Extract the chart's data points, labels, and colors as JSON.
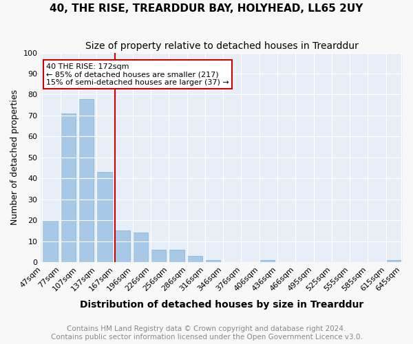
{
  "title": "40, THE RISE, TREARDDUR BAY, HOLYHEAD, LL65 2UY",
  "subtitle": "Size of property relative to detached houses in Trearddur",
  "xlabel": "Distribution of detached houses by size in Trearddur",
  "ylabel": "Number of detached properties",
  "bar_color": "#a8c8e8",
  "bar_edge_color": "#7aafd4",
  "background_color": "#e8eef8",
  "grid_color": "#ffffff",
  "annotation_text": "40 THE RISE: 172sqm\n← 85% of detached houses are smaller (217)\n15% of semi-detached houses are larger (37) →",
  "vline_color": "#cc0000",
  "annotation_box_color": "#ffffff",
  "annotation_box_edge_color": "#cc0000",
  "bin_labels": [
    "47sqm",
    "77sqm",
    "107sqm",
    "137sqm",
    "167sqm",
    "196sqm",
    "226sqm",
    "256sqm",
    "286sqm",
    "316sqm",
    "346sqm",
    "376sqm",
    "406sqm",
    "436sqm",
    "466sqm",
    "495sqm",
    "525sqm",
    "555sqm",
    "585sqm",
    "615sqm",
    "645sqm"
  ],
  "values": [
    20,
    71,
    78,
    43,
    15,
    14,
    6,
    6,
    3,
    1,
    0,
    0,
    1,
    0,
    0,
    0,
    0,
    0,
    0,
    1
  ],
  "vline_bar_index": 4,
  "ylim": [
    0,
    100
  ],
  "yticks": [
    0,
    10,
    20,
    30,
    40,
    50,
    60,
    70,
    80,
    90,
    100
  ],
  "footer_text": "Contains HM Land Registry data © Crown copyright and database right 2024.\nContains public sector information licensed under the Open Government Licence v3.0.",
  "footer_color": "#888888",
  "title_fontsize": 11,
  "subtitle_fontsize": 10,
  "xlabel_fontsize": 10,
  "ylabel_fontsize": 9,
  "tick_fontsize": 8,
  "annotation_fontsize": 8,
  "footer_fontsize": 7.5
}
